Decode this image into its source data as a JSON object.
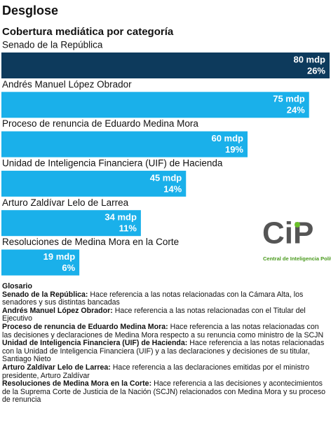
{
  "header": {
    "title": "Desglose"
  },
  "chart_data": {
    "type": "bar",
    "orientation": "horizontal",
    "title": "Cobertura mediática por categoría",
    "categories": [
      "Senado de la República",
      "Andrés Manuel López Obrador",
      "Proceso de renuncia de Eduardo Medina Mora",
      "Unidad de Inteligencia Financiera (UIF) de Hacienda",
      "Arturo Zaldívar Lelo de Larrea",
      "Resoluciones de Medina Mora en la Corte"
    ],
    "values": [
      80,
      75,
      60,
      45,
      34,
      19
    ],
    "value_labels": [
      "80 mdp",
      "75 mdp",
      "60 mdp",
      "45 mdp",
      "34 mdp",
      "19 mdp"
    ],
    "shares": [
      26,
      24,
      19,
      14,
      11,
      6
    ],
    "share_labels": [
      "26%",
      "24%",
      "19%",
      "14%",
      "11%",
      "6%"
    ],
    "colors": [
      "#0d3a5c",
      "#1ab0ea",
      "#1ab0ea",
      "#1ab0ea",
      "#1ab0ea",
      "#1ab0ea"
    ],
    "xlim": [
      0,
      80
    ]
  },
  "logo": {
    "mark": "CiP",
    "name": "Central de Inteligencia Política"
  },
  "glossary": {
    "title": "Glosario",
    "entries": [
      {
        "term": "Senado de la República:",
        "text": "Hace referencia a las notas relacionadas con la Cámara Alta, los senadores y sus distintas bancadas"
      },
      {
        "term": "Andrés Manuel López Obrador:",
        "text": "Hace referencia a las notas relacionadas con el Titular del Ejecutivo"
      },
      {
        "term": "Proceso de renuncia de Eduardo Medina Mora:",
        "text": "Hace referencia a las notas relacionadas con las decisiones y declaraciones de Medina Mora respecto a su renuncia como ministro de la SCJN"
      },
      {
        "term": "Unidad de Inteligencia Financiera (UIF) de Hacienda:",
        "text": "Hace referencia a las notas relacionadas con la Unidad de Inteligencia Financiera (UIF) y a las declaraciones y decisiones de su titular, Santiago Nieto"
      },
      {
        "term": "Arturo Zaldívar Lelo de Larrea:",
        "text": "Hace referencia a las declaraciones emitidas por el ministro presidente, Arturo Zaldívar"
      },
      {
        "term": "Resoluciones de Medina Mora en la Corte:",
        "text": "Hace referencia a las decisiones y acontecimientos de la Suprema Corte de Justicia de la Nación (SCJN) relacionados con Medina Mora y su proceso de renuncia"
      }
    ]
  }
}
